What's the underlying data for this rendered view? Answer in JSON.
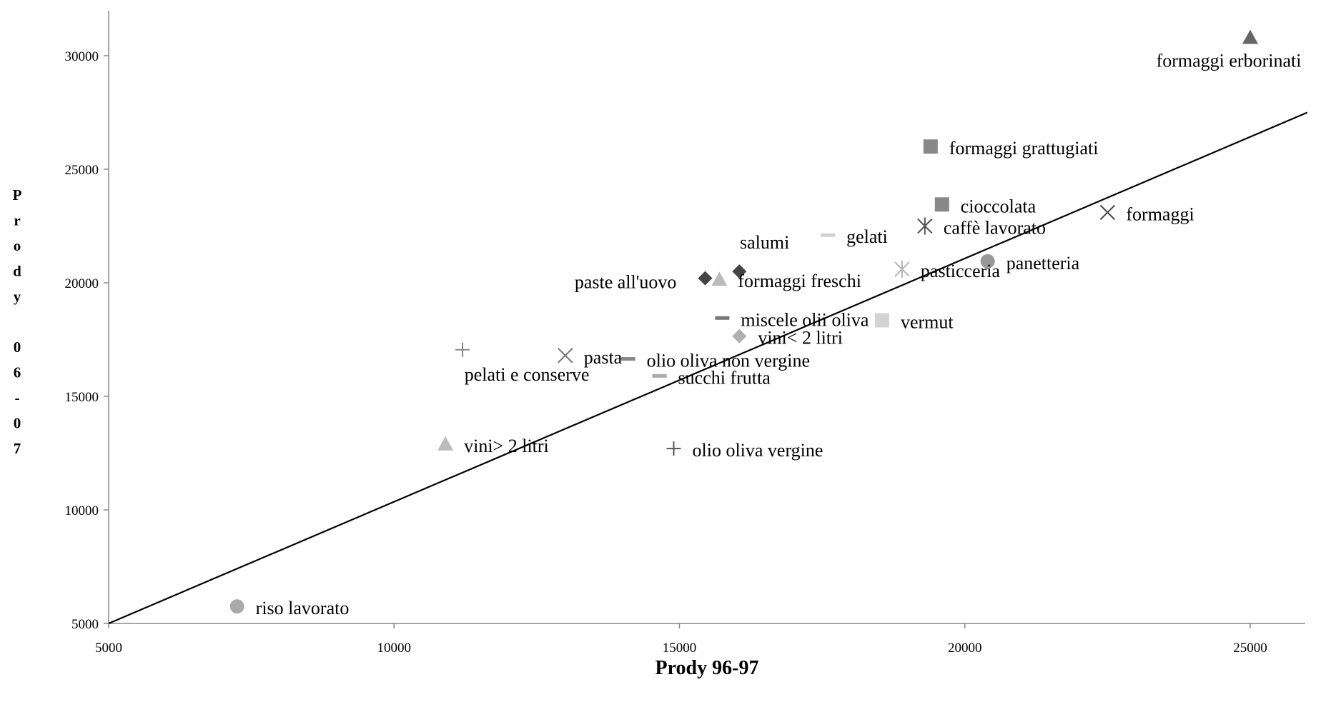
{
  "chart_data": {
    "type": "scatter",
    "xlabel": "Prody 96-97",
    "ylabel": "Prody 06-07",
    "xlim": [
      5000,
      26000
    ],
    "ylim": [
      5000,
      31000
    ],
    "x_ticks": [
      5000,
      10000,
      15000,
      20000,
      25000
    ],
    "y_ticks": [
      5000,
      10000,
      15000,
      20000,
      25000,
      30000
    ],
    "x_tick_labels": [
      "5000",
      "10000",
      "15000",
      "20000",
      "25000"
    ],
    "y_tick_labels": [
      "5000",
      "10000",
      "15000",
      "20000",
      "25000",
      "30000"
    ],
    "grid": false,
    "legend": "none",
    "reference_line": {
      "from": [
        5000,
        5000
      ],
      "to": [
        26000,
        27500
      ],
      "color": "#000000"
    },
    "points": [
      {
        "label": "formaggi erborinati",
        "x": 25000,
        "y": 30800,
        "marker": "triangle",
        "color": "#666666",
        "label_pos": "below"
      },
      {
        "label": "formaggi grattugiati",
        "x": 19400,
        "y": 26000,
        "marker": "square",
        "color": "#888888",
        "label_pos": "right"
      },
      {
        "label": "cioccolata",
        "x": 19600,
        "y": 23450,
        "marker": "square",
        "color": "#888888",
        "label_pos": "right"
      },
      {
        "label": "formaggi",
        "x": 22500,
        "y": 23100,
        "marker": "x",
        "color": "#444444",
        "label_pos": "right"
      },
      {
        "label": "caffè lavorato",
        "x": 19300,
        "y": 22500,
        "marker": "asterisk",
        "color": "#555555",
        "label_pos": "right"
      },
      {
        "label": "gelati",
        "x": 17600,
        "y": 22100,
        "marker": "dash",
        "color": "#d0d0d0",
        "label_pos": "right"
      },
      {
        "label": "salumi",
        "x": 16050,
        "y": 20500,
        "marker": "diamond",
        "color": "#444444",
        "label_pos": "above-left"
      },
      {
        "label": "paste all'uovo",
        "x": 15450,
        "y": 20200,
        "marker": "diamond",
        "color": "#444444",
        "label_pos": "left"
      },
      {
        "label": "formaggi freschi",
        "x": 15700,
        "y": 20150,
        "marker": "triangle",
        "color": "#bbbbbb",
        "label_pos": "right"
      },
      {
        "label": "pasticceria",
        "x": 18900,
        "y": 20600,
        "marker": "asterisk",
        "color": "#b5b5b5",
        "label_pos": "right"
      },
      {
        "label": "panetteria",
        "x": 20400,
        "y": 20950,
        "marker": "circle",
        "color": "#999999",
        "label_pos": "right"
      },
      {
        "label": "miscele olii oliva",
        "x": 15750,
        "y": 18450,
        "marker": "dash",
        "color": "#777777",
        "label_pos": "right"
      },
      {
        "label": "vermut",
        "x": 18550,
        "y": 18350,
        "marker": "square",
        "color": "#d3d3d3",
        "label_pos": "right"
      },
      {
        "label": "vini< 2 litri",
        "x": 16050,
        "y": 17650,
        "marker": "diamond",
        "color": "#b0b0b0",
        "label_pos": "right"
      },
      {
        "label": "pelati e conserve",
        "x": 11200,
        "y": 17050,
        "marker": "plus",
        "color": "#888888",
        "label_pos": "below"
      },
      {
        "label": "pasta",
        "x": 13000,
        "y": 16800,
        "marker": "x",
        "color": "#777777",
        "label_pos": "right"
      },
      {
        "label": "olio oliva non vergine",
        "x": 14100,
        "y": 16650,
        "marker": "dash",
        "color": "#888888",
        "label_pos": "right"
      },
      {
        "label": "succhi frutta",
        "x": 14650,
        "y": 15900,
        "marker": "dash",
        "color": "#aaaaaa",
        "label_pos": "right"
      },
      {
        "label": "vini> 2 litri",
        "x": 10900,
        "y": 12900,
        "marker": "triangle",
        "color": "#bbbbbb",
        "label_pos": "right"
      },
      {
        "label": "olio oliva vergine",
        "x": 14900,
        "y": 12700,
        "marker": "plus",
        "color": "#555555",
        "label_pos": "right"
      },
      {
        "label": "riso lavorato",
        "x": 7250,
        "y": 5750,
        "marker": "circle",
        "color": "#aaaaaa",
        "label_pos": "right"
      }
    ]
  }
}
